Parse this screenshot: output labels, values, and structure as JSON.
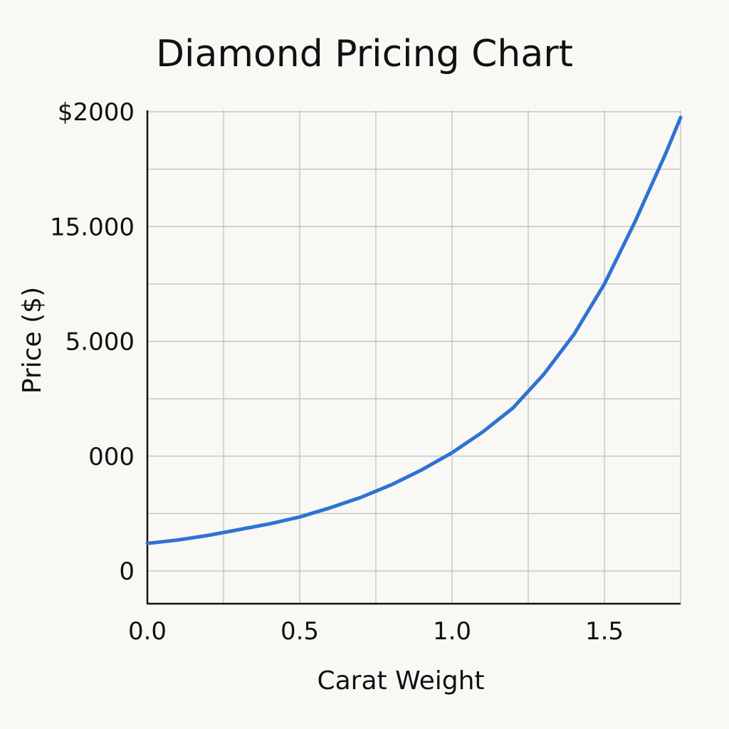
{
  "colors": {
    "background": "#f9f8f5",
    "line": "#2f72d3",
    "grid": "#bdbdbd",
    "axis": "#111111",
    "text": "#111111"
  },
  "chart_data": {
    "type": "line",
    "title": "Diamond Pricing Chart",
    "xlabel": "Carat Weight",
    "ylabel": "Price ($)",
    "grid": true,
    "xlim": [
      0,
      1.75
    ],
    "ylim": [
      -0.3,
      4.0
    ],
    "x_ticks": [
      {
        "value": 0.0,
        "label": "0.0"
      },
      {
        "value": 0.5,
        "label": "0.5"
      },
      {
        "value": 1.0,
        "label": "1.0"
      },
      {
        "value": 1.5,
        "label": "1.5"
      }
    ],
    "x_gridlines": [
      0,
      0.25,
      0.5,
      0.75,
      1.0,
      1.25,
      1.5,
      1.75
    ],
    "y_ticks": [
      {
        "value": 0,
        "label": "0"
      },
      {
        "value": 1,
        "label": "000"
      },
      {
        "value": 2,
        "label": "5.000"
      },
      {
        "value": 3,
        "label": "15.000"
      },
      {
        "value": 4,
        "label": "$2000"
      }
    ],
    "y_gridlines": [
      0,
      0.5,
      1,
      1.5,
      2,
      2.5,
      3,
      3.5,
      4
    ],
    "series": [
      {
        "x": [
          0,
          0.1,
          0.2,
          0.3,
          0.4,
          0.5,
          0.6,
          0.7,
          0.8,
          0.9,
          1.0,
          1.1,
          1.2,
          1.3,
          1.4,
          1.5,
          1.6,
          1.7,
          1.75
        ],
        "y": [
          0.24,
          0.27,
          0.31,
          0.36,
          0.41,
          0.47,
          0.55,
          0.64,
          0.75,
          0.88,
          1.03,
          1.21,
          1.42,
          1.71,
          2.06,
          2.5,
          3.04,
          3.63,
          3.95
        ]
      }
    ]
  }
}
